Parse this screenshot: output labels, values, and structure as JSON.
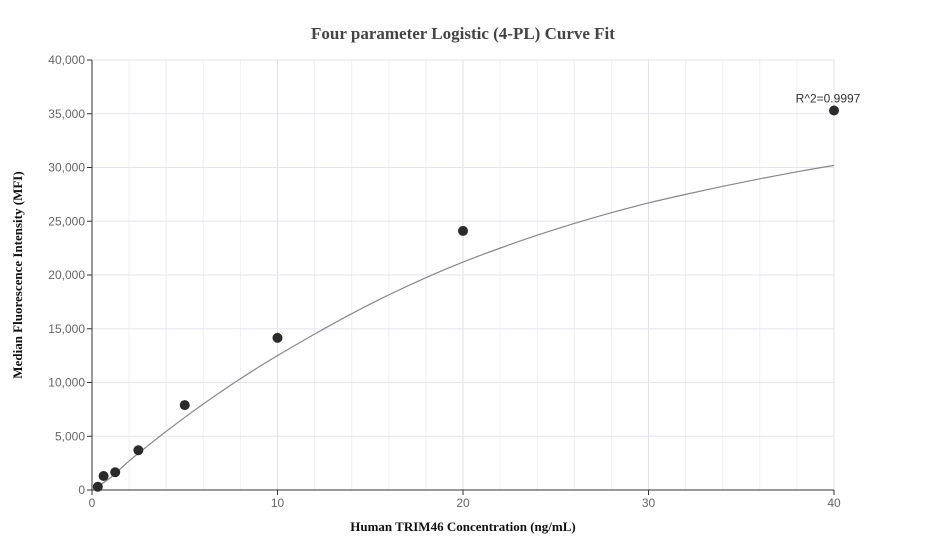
{
  "chart_data": {
    "type": "scatter",
    "title": "Four parameter Logistic (4-PL) Curve Fit",
    "xlabel": "Human TRIM46 Concentration (ng/mL)",
    "ylabel": "Median Fluorescence Intensity (MFI)",
    "xlim": [
      0,
      40
    ],
    "ylim": [
      0,
      40000
    ],
    "x_ticks": [
      0,
      10,
      20,
      30,
      40
    ],
    "x_tick_labels": [
      "0",
      "10",
      "20",
      "30",
      "40"
    ],
    "y_ticks": [
      0,
      5000,
      10000,
      15000,
      20000,
      25000,
      30000,
      35000,
      40000
    ],
    "y_tick_labels": [
      "0",
      "5,000",
      "10,000",
      "15,000",
      "20,000",
      "25,000",
      "30,000",
      "35,000",
      "40,000"
    ],
    "grid": true,
    "series": [
      {
        "points": [
          {
            "x": 0.3125,
            "y": 300
          },
          {
            "x": 0.625,
            "y": 1300
          },
          {
            "x": 1.25,
            "y": 1650
          },
          {
            "x": 2.5,
            "y": 3700
          },
          {
            "x": 5,
            "y": 7900
          },
          {
            "x": 10,
            "y": 14150
          },
          {
            "x": 20,
            "y": 24100
          },
          {
            "x": 40,
            "y": 35300
          }
        ],
        "color": "#2b2b2b"
      }
    ],
    "fit_curve": {
      "x": [
        0.3125,
        1,
        2,
        3,
        4,
        5,
        6,
        7,
        8,
        9,
        10,
        12,
        14,
        16,
        18,
        20,
        22,
        24,
        26,
        28,
        30,
        32,
        34,
        36,
        38,
        40
      ],
      "y": [
        350,
        1150,
        2700,
        4100,
        5450,
        6750,
        8000,
        9200,
        10350,
        11450,
        12500,
        14500,
        16400,
        18150,
        19750,
        21200,
        22500,
        23700,
        24800,
        25800,
        26700,
        27500,
        28250,
        28950,
        29600,
        30200
      ],
      "color": "#888888"
    },
    "annotation": {
      "text": "R^2=0.9997",
      "x": 40,
      "y": 35300
    }
  },
  "colors": {
    "grid": "#e6e6ee",
    "axis": "#333333",
    "curve": "#808080",
    "point": "#2b2b2b"
  }
}
